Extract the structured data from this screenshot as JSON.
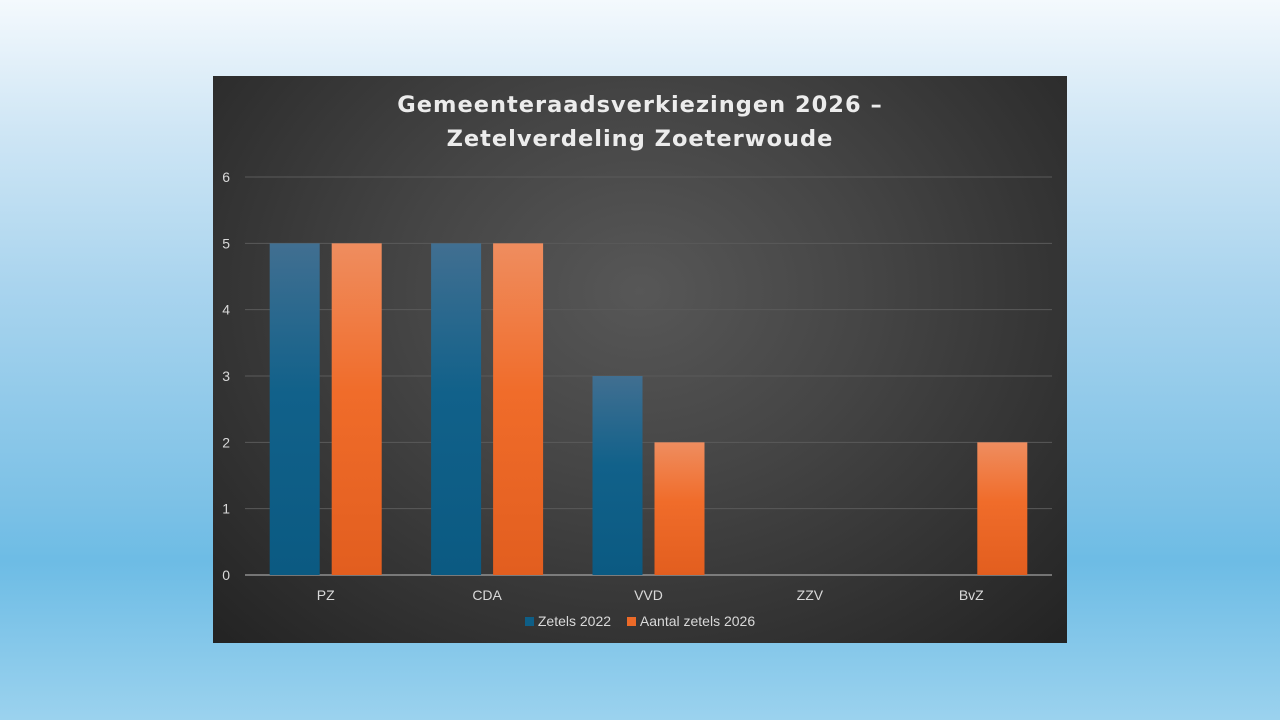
{
  "chart_data": {
    "type": "bar",
    "title_line1": "Gemeenteraadsverkiezingen 2026 –",
    "title_line2": "Zetelverdeling Zoeterwoude",
    "categories": [
      "PZ",
      "CDA",
      "VVD",
      "ZZV",
      "BvZ"
    ],
    "series": [
      {
        "name": "Zetels 2022",
        "values": [
          5,
          5,
          3,
          0,
          0
        ],
        "color": "#0e5e86"
      },
      {
        "name": "Aantal zetels 2026",
        "values": [
          5,
          5,
          2,
          0,
          2
        ],
        "color": "#ec6a28"
      }
    ],
    "y_ticks": [
      "0",
      "1",
      "2",
      "3",
      "4",
      "5",
      "6"
    ],
    "ylim": [
      0,
      6
    ],
    "grid": true,
    "legend_position": "bottom"
  }
}
